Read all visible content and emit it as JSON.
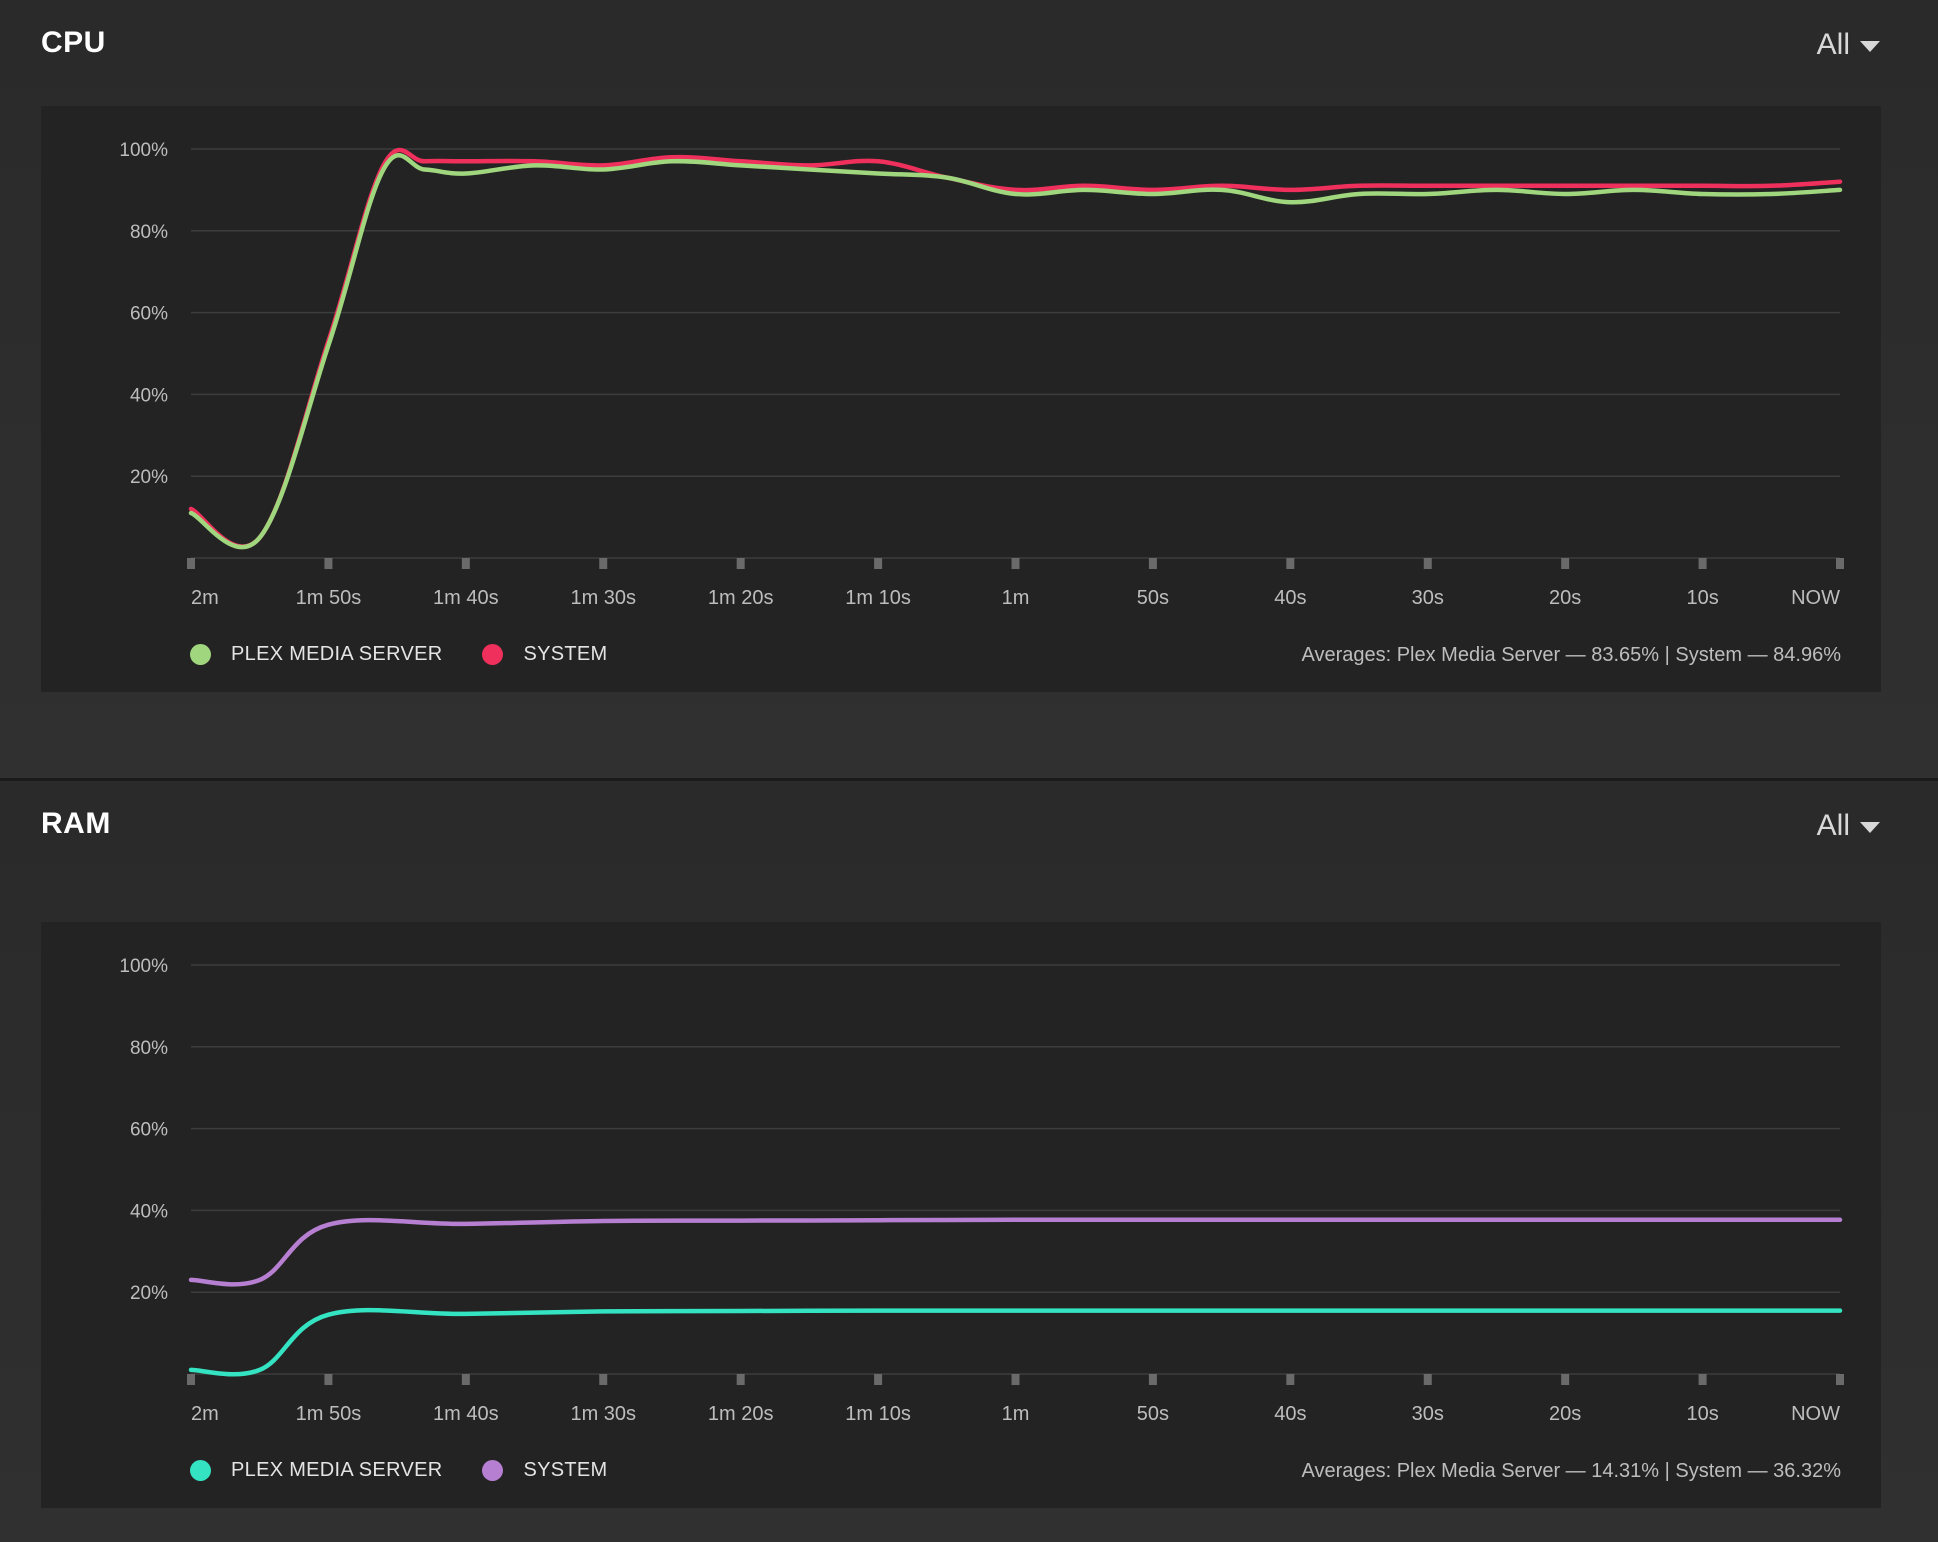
{
  "cpu": {
    "title": "CPU",
    "filter_value": "All",
    "legend": [
      {
        "label": "PLEX MEDIA SERVER",
        "color": "#9fd67e"
      },
      {
        "label": "SYSTEM",
        "color": "#f0305c"
      }
    ],
    "averages_text": "Averages: Plex Media Server — 83.65% | System — 84.96%"
  },
  "ram": {
    "title": "RAM",
    "filter_value": "All",
    "legend": [
      {
        "label": "PLEX MEDIA SERVER",
        "color": "#34e3c1"
      },
      {
        "label": "SYSTEM",
        "color": "#b77fd1"
      }
    ],
    "averages_text": "Averages: Plex Media Server — 14.31% | System — 36.32%"
  },
  "chart_data": [
    {
      "type": "line",
      "y_ticks": [
        "100%",
        "80%",
        "60%",
        "40%",
        "20%"
      ],
      "x_ticks": [
        "2m",
        "1m 50s",
        "1m 40s",
        "1m 30s",
        "1m 20s",
        "1m 10s",
        "1m",
        "50s",
        "40s",
        "30s",
        "20s",
        "10s",
        "NOW"
      ],
      "ylim": [
        0,
        100
      ],
      "x": [
        -120,
        -115,
        -110,
        -106,
        -103,
        -100,
        -95,
        -90,
        -85,
        -80,
        -75,
        -70,
        -65,
        -60,
        -55,
        -50,
        -45,
        -40,
        -35,
        -30,
        -25,
        -20,
        -15,
        -10,
        -5,
        0
      ],
      "series": [
        {
          "name": "PLEX MEDIA SERVER",
          "color": "#9fd67e",
          "values": [
            11,
            5,
            52,
            95,
            95,
            94,
            96,
            95,
            97,
            96,
            95,
            94,
            93,
            89,
            90,
            89,
            90,
            87,
            89,
            89,
            90,
            89,
            90,
            89,
            89,
            90
          ]
        },
        {
          "name": "SYSTEM",
          "color": "#f0305c",
          "values": [
            12,
            5,
            53,
            96,
            97,
            97,
            97,
            96,
            98,
            97,
            96,
            97,
            93,
            90,
            91,
            90,
            91,
            90,
            91,
            91,
            91,
            91,
            91,
            91,
            91,
            92
          ]
        }
      ]
    },
    {
      "type": "line",
      "y_ticks": [
        "100%",
        "80%",
        "60%",
        "40%",
        "20%"
      ],
      "x_ticks": [
        "2m",
        "1m 50s",
        "1m 40s",
        "1m 30s",
        "1m 20s",
        "1m 10s",
        "1m",
        "50s",
        "40s",
        "30s",
        "20s",
        "10s",
        "NOW"
      ],
      "ylim": [
        0,
        100
      ],
      "x": [
        -120,
        -115,
        -110,
        -100,
        -90,
        -80,
        -70,
        -60,
        -50,
        -40,
        -30,
        -20,
        -10,
        0
      ],
      "series": [
        {
          "name": "PLEX MEDIA SERVER",
          "color": "#34e3c1",
          "values": [
            1,
            1,
            14.5,
            14.7,
            15.3,
            15.4,
            15.5,
            15.5,
            15.5,
            15.5,
            15.5,
            15.5,
            15.5,
            15.5
          ]
        },
        {
          "name": "SYSTEM",
          "color": "#b77fd1",
          "values": [
            23,
            23,
            36.5,
            36.7,
            37.4,
            37.5,
            37.6,
            37.7,
            37.7,
            37.7,
            37.7,
            37.7,
            37.7,
            37.7
          ]
        }
      ]
    }
  ]
}
